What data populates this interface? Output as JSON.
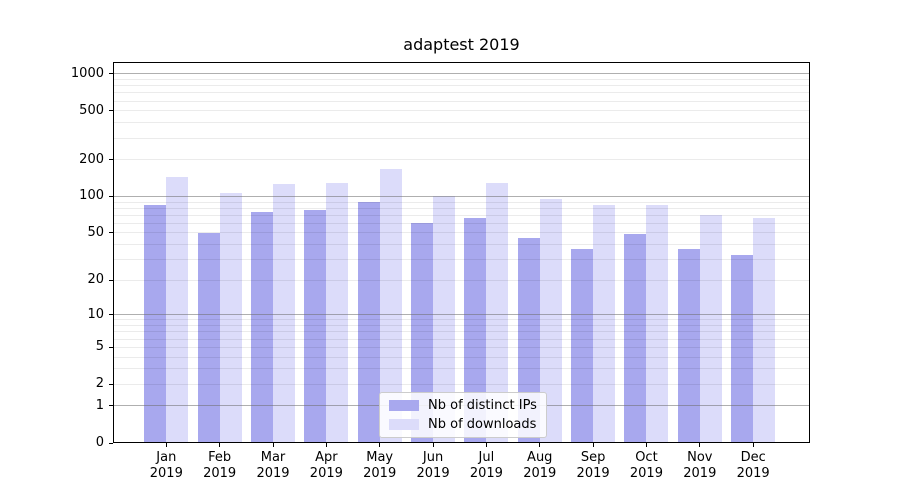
{
  "title": "adaptest 2019",
  "chart_data": {
    "type": "bar",
    "title": "adaptest 2019",
    "yscale": "log1p (position proportional to log10(value+1), symlog-like)",
    "ylim": [
      0,
      1250
    ],
    "yticks": [
      0,
      1,
      2,
      5,
      10,
      20,
      50,
      100,
      200,
      500,
      1000
    ],
    "grid": {
      "major_lines": [
        1,
        10,
        100,
        1000
      ],
      "minor_multiples_per_decade": [
        2,
        3,
        4,
        5,
        6,
        7,
        8,
        9
      ],
      "major_color": "rgba(110,110,110,0.55)",
      "minor_color": "rgba(0,0,0,0.08)",
      "drawn_above_bars": true
    },
    "categories": [
      {
        "month": "Jan",
        "year": "2019"
      },
      {
        "month": "Feb",
        "year": "2019"
      },
      {
        "month": "Mar",
        "year": "2019"
      },
      {
        "month": "Apr",
        "year": "2019"
      },
      {
        "month": "May",
        "year": "2019"
      },
      {
        "month": "Jun",
        "year": "2019"
      },
      {
        "month": "Jul",
        "year": "2019"
      },
      {
        "month": "Aug",
        "year": "2019"
      },
      {
        "month": "Sep",
        "year": "2019"
      },
      {
        "month": "Oct",
        "year": "2019"
      },
      {
        "month": "Nov",
        "year": "2019"
      },
      {
        "month": "Dec",
        "year": "2019"
      }
    ],
    "series": [
      {
        "name": "Nb of distinct IPs",
        "color": "#a8a8ee",
        "values": [
          85,
          50,
          75,
          77,
          90,
          60,
          67,
          45,
          37,
          49,
          37,
          33
        ]
      },
      {
        "name": "Nb of downloads",
        "color": "#dcdcfa",
        "values": [
          144,
          106,
          127,
          128,
          167,
          101,
          128,
          95,
          85,
          85,
          71,
          66
        ]
      }
    ],
    "legend": {
      "position": "lower center",
      "background": "#ffffff",
      "border_color": "#cccccc"
    },
    "axis_color": "#000000",
    "background_color": "#ffffff"
  }
}
